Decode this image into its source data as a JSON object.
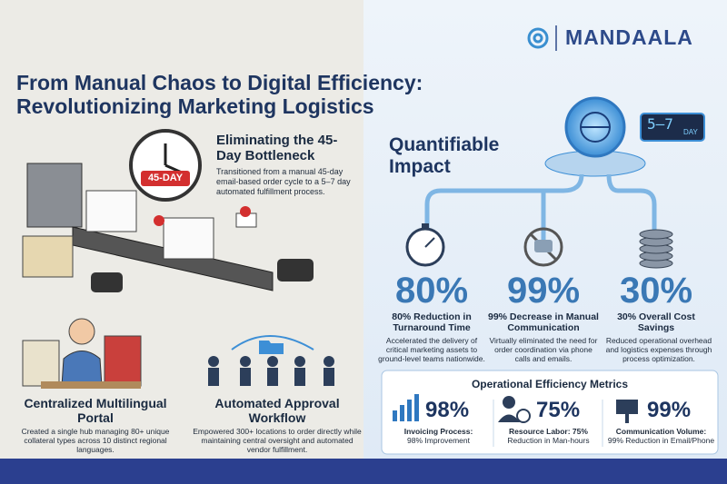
{
  "brand": "MANDAALA",
  "title": [
    "From Manual Chaos to Digital Efficiency:",
    "Revolutionizing Marketing Logistics"
  ],
  "bottleneck": {
    "heading": "Eliminating the 45-Day Bottleneck",
    "clock_label": "45-DAY",
    "body": "Transitioned from a manual 45-day email-based order cycle to a 5–7 day automated fulfillment process."
  },
  "screen": {
    "range": "5–7",
    "unit": "DAY"
  },
  "portal": {
    "heading": "Centralized Multilingual Portal",
    "body": "Created a single hub managing 80+ unique collateral types across 10 distinct regional languages."
  },
  "workflow": {
    "heading": "Automated Approval Workflow",
    "body": "Empowered 300+ locations to order directly while maintaining central oversight and automated vendor fulfillment."
  },
  "impact": {
    "heading": "Quantifiable Impact",
    "stats": [
      {
        "value": "80%",
        "label": "80% Reduction in Turnaround Time",
        "body": "Accelerated the delivery of critical marketing assets to ground-level teams nationwide."
      },
      {
        "value": "99%",
        "label": "99% Decrease in Manual Communication",
        "body": "Virtually eliminated the need for order coordination via phone calls and emails."
      },
      {
        "value": "30%",
        "label": "30% Overall Cost Savings",
        "body": "Reduced operational overhead and logistics expenses through process optimization."
      }
    ]
  },
  "metrics": {
    "heading": "Operational Efficiency Metrics",
    "items": [
      {
        "value": "98%",
        "label": "Invoicing Process:",
        "detail": "98% Improvement"
      },
      {
        "value": "75%",
        "label": "Resource Labor: 75%",
        "detail": "Reduction in Man-hours"
      },
      {
        "value": "99%",
        "label": "Communication Volume:",
        "detail": "99% Reduction in Email/Phone"
      }
    ]
  }
}
